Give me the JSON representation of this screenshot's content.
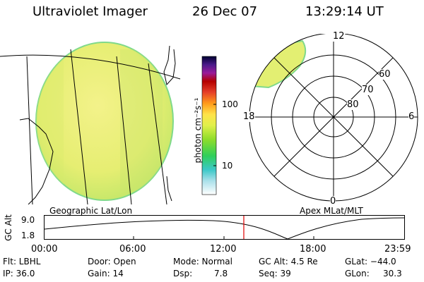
{
  "header": {
    "title": "Ultraviolet Imager",
    "date": "26 Dec 07",
    "time": "13:29:14 UT"
  },
  "colorbar": {
    "label": "photon cm⁻²s⁻¹",
    "tick_100": "100",
    "tick_10": "10"
  },
  "polar": {
    "mlt_12": "12",
    "mlt_18": "18",
    "mlt_6": "6",
    "mlt_0": "0",
    "lat_60": "60",
    "lat_70": "70",
    "lat_80": "80"
  },
  "panels": {
    "left_label": "Geographic Lat/Lon",
    "right_label": "Apex MLat/MLT"
  },
  "orbit": {
    "axis_label": "GC Alt",
    "y_top": "9.0",
    "y_bottom": "1.8",
    "x_ticks": [
      "00:00",
      "06:00",
      "12:00",
      "18:00",
      "23:59"
    ],
    "marker_time": "13:29"
  },
  "info": {
    "flt": "Flt: LBHL",
    "ip": "IP: 36.0",
    "door": "Door: Open",
    "gain": "Gain: 14",
    "mode": "Mode: Normal",
    "dsp_label": "Dsp:",
    "dsp_value": "7.8",
    "gcalt": "GC Alt: 4.5 Re",
    "seq": "Seq: 39",
    "glat": "GLat: −44.0",
    "glon_label": "GLon:",
    "glon_value": "30.3"
  },
  "colors": {
    "image_fill": "#e8f07a",
    "image_edge": "#9be07c",
    "marker": "#e00000"
  }
}
